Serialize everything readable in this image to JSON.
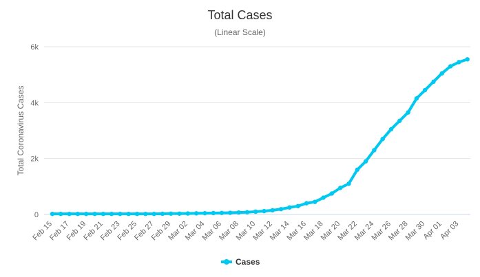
{
  "chart_data": {
    "type": "line",
    "title": "Total Cases",
    "subtitle": "(Linear Scale)",
    "xlabel": "",
    "ylabel": "Total Coronavirus Cases",
    "ylim": [
      0,
      6000
    ],
    "yticks": [
      0,
      2000,
      4000,
      6000
    ],
    "ytick_labels": [
      "0",
      "2k",
      "4k",
      "6k"
    ],
    "x": [
      "Feb 15",
      "Feb 16",
      "Feb 17",
      "Feb 18",
      "Feb 19",
      "Feb 20",
      "Feb 21",
      "Feb 22",
      "Feb 23",
      "Feb 24",
      "Feb 25",
      "Feb 26",
      "Feb 27",
      "Feb 28",
      "Feb 29",
      "Mar 01",
      "Mar 02",
      "Mar 03",
      "Mar 04",
      "Mar 05",
      "Mar 06",
      "Mar 07",
      "Mar 08",
      "Mar 09",
      "Mar 10",
      "Mar 11",
      "Mar 12",
      "Mar 13",
      "Mar 14",
      "Mar 15",
      "Mar 16",
      "Mar 17",
      "Mar 18",
      "Mar 19",
      "Mar 20",
      "Mar 21",
      "Mar 22",
      "Mar 23",
      "Mar 24",
      "Mar 25",
      "Mar 26",
      "Mar 27",
      "Mar 28",
      "Mar 29",
      "Mar 30",
      "Mar 31",
      "Apr 01",
      "Apr 02",
      "Apr 03",
      "Apr 04"
    ],
    "x_tick_labels": [
      "Feb 15",
      "Feb 17",
      "Feb 19",
      "Feb 21",
      "Feb 23",
      "Feb 25",
      "Feb 27",
      "Feb 29",
      "Mar 02",
      "Mar 04",
      "Mar 06",
      "Mar 08",
      "Mar 10",
      "Mar 12",
      "Mar 14",
      "Mar 16",
      "Mar 18",
      "Mar 20",
      "Mar 22",
      "Mar 24",
      "Mar 26",
      "Mar 28",
      "Mar 30",
      "Apr 01",
      "Apr 03"
    ],
    "series": [
      {
        "name": "Cases",
        "color": "#00c8f0",
        "values": [
          20,
          20,
          20,
          20,
          20,
          20,
          20,
          20,
          20,
          20,
          20,
          20,
          20,
          25,
          30,
          30,
          35,
          40,
          45,
          50,
          55,
          60,
          70,
          80,
          100,
          120,
          150,
          190,
          250,
          300,
          400,
          450,
          600,
          750,
          950,
          1100,
          1600,
          1900,
          2300,
          2700,
          3050,
          3350,
          3650,
          4150,
          4450,
          4750,
          5050,
          5300,
          5450,
          5550
        ]
      }
    ],
    "grid": true,
    "legend": "bottom-center"
  }
}
